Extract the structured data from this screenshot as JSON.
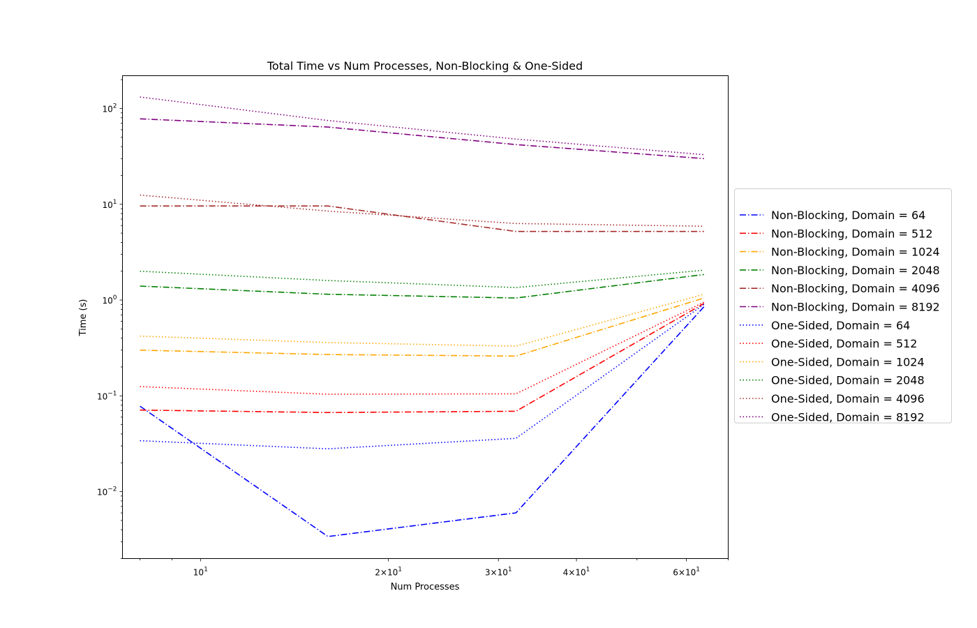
{
  "chart_data": {
    "type": "line",
    "title": "Total Time vs Num Processes, Non-Blocking & One-Sided",
    "xlabel": "Num Processes",
    "ylabel": "Time (s)",
    "xscale": "log",
    "yscale": "log",
    "xlim": [
      7.5,
      70
    ],
    "ylim": [
      0.002,
      220
    ],
    "grid": false,
    "legend_position": "center-right (outside plot)",
    "x_ticks": [
      {
        "value": 10,
        "base": "10",
        "exp": "1",
        "coef": ""
      },
      {
        "value": 20,
        "base": "10",
        "exp": "1",
        "coef": "2×"
      },
      {
        "value": 30,
        "base": "10",
        "exp": "1",
        "coef": "3×"
      },
      {
        "value": 40,
        "base": "10",
        "exp": "1",
        "coef": "4×"
      },
      {
        "value": 60,
        "base": "10",
        "exp": "1",
        "coef": "6×"
      }
    ],
    "y_ticks": [
      {
        "value": 0.01,
        "base": "10",
        "exp": "−2"
      },
      {
        "value": 0.1,
        "base": "10",
        "exp": "−1"
      },
      {
        "value": 1,
        "base": "10",
        "exp": "0"
      },
      {
        "value": 10,
        "base": "10",
        "exp": "1"
      },
      {
        "value": 100,
        "base": "10",
        "exp": "2"
      }
    ],
    "x": [
      8,
      16,
      32,
      64
    ],
    "series": [
      {
        "name": "Non-Blocking, Domain = 64",
        "color": "#0000ff",
        "style": "dashdot",
        "values": [
          0.078,
          0.0034,
          0.006,
          0.85
        ]
      },
      {
        "name": "Non-Blocking, Domain = 512",
        "color": "#ff0000",
        "style": "dashdot",
        "values": [
          0.071,
          0.067,
          0.069,
          0.92
        ]
      },
      {
        "name": "Non-Blocking, Domain = 1024",
        "color": "#ffa500",
        "style": "dashdot",
        "values": [
          0.3,
          0.27,
          0.26,
          1.05
        ]
      },
      {
        "name": "Non-Blocking, Domain = 2048",
        "color": "#008000",
        "style": "dashdot",
        "values": [
          1.4,
          1.15,
          1.05,
          1.85
        ]
      },
      {
        "name": "Non-Blocking, Domain = 4096",
        "color": "#a52a2a",
        "style": "dashdot",
        "values": [
          9.6,
          9.6,
          5.2,
          5.2
        ]
      },
      {
        "name": "Non-Blocking, Domain = 8192",
        "color": "#800080",
        "style": "dashdot",
        "values": [
          78,
          64,
          42,
          30
        ]
      },
      {
        "name": "One-Sided, Domain = 64",
        "color": "#0000ff",
        "style": "dotted",
        "values": [
          0.034,
          0.028,
          0.036,
          0.9
        ]
      },
      {
        "name": "One-Sided, Domain = 512",
        "color": "#ff0000",
        "style": "dotted",
        "values": [
          0.125,
          0.104,
          0.105,
          0.95
        ]
      },
      {
        "name": "One-Sided, Domain = 1024",
        "color": "#ffa500",
        "style": "dotted",
        "values": [
          0.42,
          0.36,
          0.33,
          1.15
        ]
      },
      {
        "name": "One-Sided, Domain = 2048",
        "color": "#008000",
        "style": "dotted",
        "values": [
          2.0,
          1.6,
          1.35,
          2.05
        ]
      },
      {
        "name": "One-Sided, Domain = 4096",
        "color": "#a52a2a",
        "style": "dotted",
        "values": [
          12.5,
          8.5,
          6.3,
          5.9
        ]
      },
      {
        "name": "One-Sided, Domain = 8192",
        "color": "#800080",
        "style": "dotted",
        "values": [
          132,
          75,
          48,
          33
        ]
      }
    ]
  }
}
